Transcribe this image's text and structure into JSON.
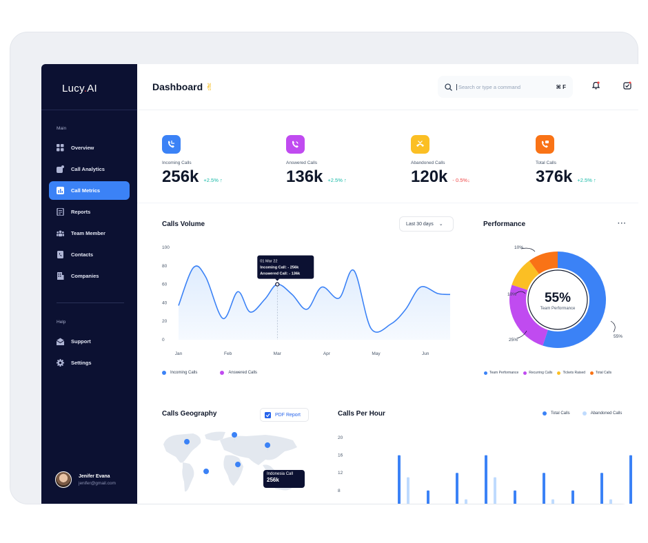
{
  "app": {
    "logo_prefix": "Lucy",
    "logo_suffix": "AI"
  },
  "header": {
    "title": "Dashboard",
    "title_emoji": "✌",
    "search_placeholder": "Search or type a command",
    "search_shortcut": "⌘ F"
  },
  "sidebar": {
    "section_main": "Main",
    "items": [
      {
        "label": "Overview",
        "icon": "grid-icon"
      },
      {
        "label": "Call Analytics",
        "icon": "chart-icon"
      },
      {
        "label": "Call Metrics",
        "icon": "bar-icon",
        "active": true
      },
      {
        "label": "Reports",
        "icon": "document-icon"
      },
      {
        "label": "Team Member",
        "icon": "team-icon"
      },
      {
        "label": "Contacts",
        "icon": "phone-book-icon"
      },
      {
        "label": "Companies",
        "icon": "building-icon"
      }
    ],
    "section_help": "Help",
    "help_items": [
      {
        "label": "Support",
        "icon": "envelope-icon"
      },
      {
        "label": "Settings",
        "icon": "gear-icon"
      }
    ],
    "user": {
      "name": "Jenifer Evana",
      "email": "jenifer@gmail.com"
    }
  },
  "stats": [
    {
      "label": "Incoming Calls",
      "value": "256k",
      "change": "+2.5% ↑",
      "trend": "up",
      "color": "#3b82f6"
    },
    {
      "label": "Answered Calls",
      "value": "136k",
      "change": "+2.5% ↑",
      "trend": "up",
      "color": "#c04bf0"
    },
    {
      "label": "Abandoned Calls",
      "value": "120k",
      "change": "- 0.5%↓",
      "trend": "down",
      "color": "#fbbf24"
    },
    {
      "label": "Total Calls",
      "value": "376k",
      "change": "+2.5% ↑",
      "trend": "up",
      "color": "#f97316"
    }
  ],
  "calls_volume": {
    "title": "Calls Volume",
    "range": "Last 30 days",
    "legend": [
      "Incoming Calls",
      "Answered Calls"
    ],
    "tooltip": {
      "date": "01 Mar 22",
      "line1": "Incoming Call:   - 256k",
      "line2": "Answered Call:   - 136k"
    }
  },
  "performance": {
    "title": "Performance",
    "center_value": "55%",
    "center_label": "Team Performance",
    "callouts": [
      "10%",
      "10%",
      "25%",
      "55%"
    ],
    "legend": [
      "Team Performance",
      "Recurring Calls",
      "Tickets Raised",
      "Total Calls"
    ]
  },
  "geography": {
    "title": "Calls Geography",
    "button": "PDF Report",
    "tooltip_title": "Indonesia Call",
    "tooltip_value": "256k"
  },
  "calls_per_hour": {
    "title": "Calls Per Hour",
    "legend": [
      "Total Calls",
      "Abandoned Calls"
    ]
  },
  "chart_data": [
    {
      "type": "area",
      "title": "Calls Volume",
      "x_ticks": [
        "Jan",
        "Feb",
        "Mar",
        "Apr",
        "May",
        "Jun"
      ],
      "y_ticks": [
        "100",
        "80",
        "60",
        "40",
        "20",
        "0"
      ],
      "ylim": [
        0,
        100
      ],
      "grid": false,
      "series": [
        {
          "name": "Incoming Calls",
          "x": [
            0,
            0.3,
            0.55,
            0.9,
            1.2,
            1.45,
            1.75,
            2.0,
            2.3,
            2.6,
            2.9,
            3.25,
            3.55,
            3.9,
            4.3,
            4.6,
            4.9,
            5.25,
            5.5
          ],
          "values": [
            37,
            78,
            68,
            23,
            52,
            30,
            44,
            60,
            49,
            33,
            57,
            45,
            75,
            12,
            17,
            33,
            57,
            50,
            49
          ]
        }
      ],
      "colors": {
        "line": "#3b82f6",
        "fill": "#dbeafe"
      }
    },
    {
      "type": "pie",
      "title": "Performance",
      "categories": [
        "Team Performance",
        "Recurring Calls",
        "Tickets Raised",
        "Total Calls"
      ],
      "values": [
        55,
        25,
        10,
        10
      ],
      "colors": [
        "#3b82f6",
        "#c04bf0",
        "#fbbf24",
        "#f97316"
      ]
    },
    {
      "type": "bar",
      "title": "Calls Per Hour",
      "y_ticks": [
        "20",
        "16",
        "12",
        "8"
      ],
      "series": [
        {
          "name": "Total Calls",
          "values": [
            16,
            8,
            12,
            16,
            8,
            12,
            8,
            12,
            16,
            8
          ]
        },
        {
          "name": "Abandoned Calls",
          "values": [
            11,
            2,
            6,
            11,
            2,
            6,
            2,
            6,
            11,
            2
          ]
        }
      ],
      "colors": [
        "#3b82f6",
        "#bfdbfe"
      ]
    }
  ]
}
